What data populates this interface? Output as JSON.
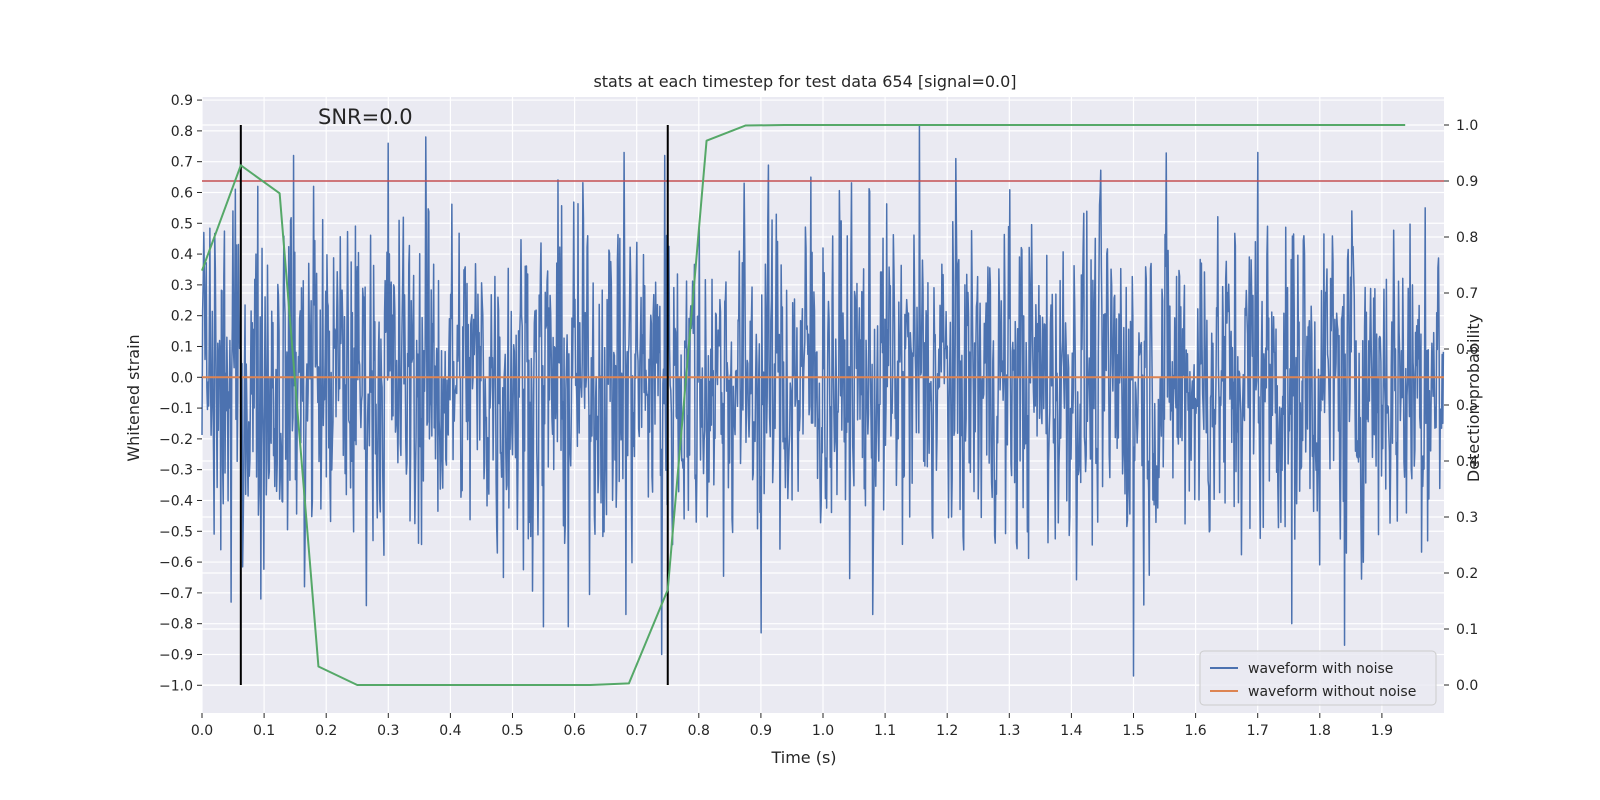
{
  "chart_data": {
    "type": "line",
    "title": "stats at each timestep for test data 654 [signal=0.0]",
    "annotation": "SNR=0.0",
    "xlabel": "Time (s)",
    "ylabel": "Whitened strain",
    "y2label": "Detection probability",
    "xlim": [
      0.0,
      2.0
    ],
    "ylim": [
      -1.09,
      0.91
    ],
    "y2lim": [
      -0.05,
      1.05
    ],
    "xticks": [
      "0.0",
      "0.1",
      "0.2",
      "0.3",
      "0.4",
      "0.5",
      "0.6",
      "0.7",
      "0.8",
      "0.9",
      "1.0",
      "1.1",
      "1.2",
      "1.3",
      "1.4",
      "1.5",
      "1.6",
      "1.7",
      "1.8",
      "1.9"
    ],
    "yticks": [
      "0.9",
      "0.8",
      "0.7",
      "0.6",
      "0.5",
      "0.4",
      "0.3",
      "0.2",
      "0.1",
      "0.0",
      "−0.1",
      "−0.2",
      "−0.3",
      "−0.4",
      "−0.5",
      "−0.6",
      "−0.7",
      "−0.8",
      "−0.9",
      "−1.0"
    ],
    "y2ticks": [
      "1.0",
      "0.9",
      "0.8",
      "0.7",
      "0.6",
      "0.5",
      "0.4",
      "0.3",
      "0.2",
      "0.1",
      "0.0"
    ],
    "legend": {
      "position": "lower-right",
      "entries": [
        {
          "label": "waveform with noise",
          "color": "#4c72b0"
        },
        {
          "label": "waveform without noise",
          "color": "#dd8452"
        }
      ]
    },
    "series": [
      {
        "name": "waveform with noise",
        "color": "#4c72b0",
        "style": "dense noise",
        "n_samples": 2048,
        "dt": 0.0009765625,
        "typical_amplitude": 0.35,
        "peaks": [
          {
            "t": 0.003,
            "v": 0.47
          },
          {
            "t": 0.03,
            "v": -0.56
          },
          {
            "t": 0.047,
            "v": -0.73
          },
          {
            "t": 0.05,
            "v": 0.54
          },
          {
            "t": 0.09,
            "v": 0.62
          },
          {
            "t": 0.095,
            "v": -0.72
          },
          {
            "t": 0.147,
            "v": 0.72
          },
          {
            "t": 0.165,
            "v": -0.68
          },
          {
            "t": 0.18,
            "v": 0.62
          },
          {
            "t": 0.3,
            "v": 0.76
          },
          {
            "t": 0.36,
            "v": 0.78
          },
          {
            "t": 0.485,
            "v": -0.65
          },
          {
            "t": 0.55,
            "v": -0.81
          },
          {
            "t": 0.59,
            "v": -0.81
          },
          {
            "t": 0.68,
            "v": 0.73
          },
          {
            "t": 0.683,
            "v": -0.77
          },
          {
            "t": 0.745,
            "v": 0.72
          },
          {
            "t": 0.74,
            "v": -0.9
          },
          {
            "t": 0.9,
            "v": -0.83
          },
          {
            "t": 0.98,
            "v": 0.65
          },
          {
            "t": 1.08,
            "v": -0.77
          },
          {
            "t": 1.155,
            "v": 0.82
          },
          {
            "t": 1.5,
            "v": -0.97
          },
          {
            "t": 1.7,
            "v": 0.73
          },
          {
            "t": 1.755,
            "v": -0.8
          },
          {
            "t": 1.84,
            "v": -0.87
          },
          {
            "t": 1.97,
            "v": 0.55
          }
        ]
      },
      {
        "name": "waveform without noise",
        "color": "#dd8452",
        "t": [
          0.0,
          2.0
        ],
        "v": [
          0.0,
          0.0
        ]
      },
      {
        "name": "detection probability",
        "color": "#55a868",
        "axis": "right",
        "t": [
          0.0,
          0.0625,
          0.125,
          0.1875,
          0.25,
          0.3125,
          0.375,
          0.4375,
          0.5,
          0.5625,
          0.625,
          0.6875,
          0.75,
          0.8125,
          0.875,
          0.9375,
          1.0,
          1.0625,
          1.125,
          1.1875,
          1.25,
          1.3125,
          1.375,
          1.4375,
          1.5,
          1.5625,
          1.625,
          1.6875,
          1.75,
          1.8125,
          1.875,
          1.9375
        ],
        "v": [
          0.74,
          0.928,
          0.878,
          0.033,
          0.0,
          0.0,
          0.0,
          0.0,
          0.0,
          0.0,
          0.0,
          0.003,
          0.17,
          0.972,
          0.999,
          1.0,
          1.0,
          1.0,
          1.0,
          1.0,
          1.0,
          1.0,
          1.0,
          1.0,
          1.0,
          1.0,
          1.0,
          1.0,
          1.0,
          1.0,
          1.0,
          1.0
        ]
      }
    ],
    "threshold": {
      "value": 0.9,
      "axis": "right",
      "color": "#c44e52"
    },
    "vlines": [
      {
        "x": 0.0625,
        "y2_from": 0.0,
        "y2_to": 1.0,
        "color": "#000000"
      },
      {
        "x": 0.75,
        "y2_from": 0.0,
        "y2_to": 1.0,
        "color": "#000000"
      }
    ]
  }
}
